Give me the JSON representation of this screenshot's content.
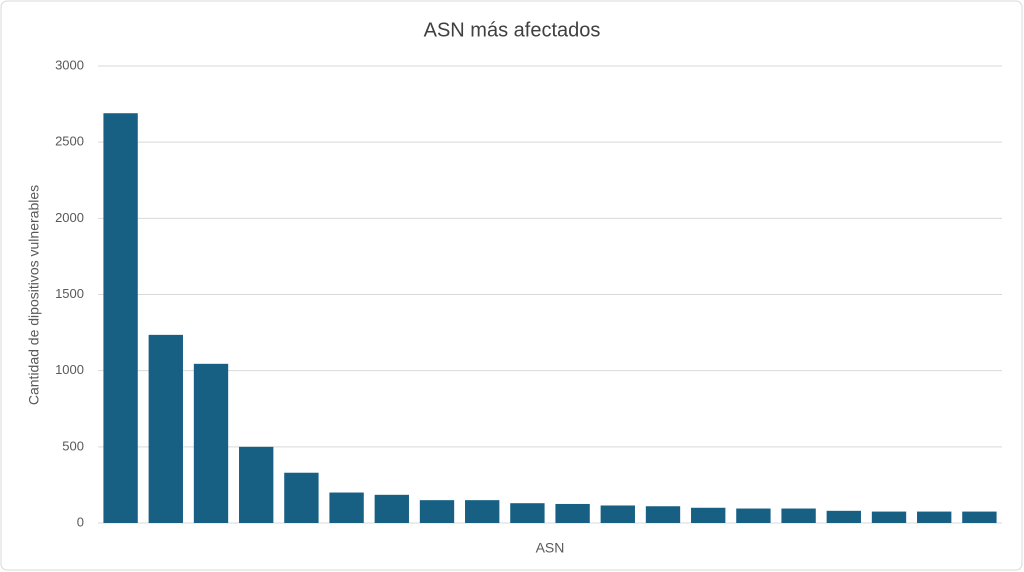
{
  "chart_data": {
    "type": "bar",
    "title": "ASN más afectados",
    "x_label": "ASN",
    "y_label": "Cantidad de dipositivos vulnerables",
    "categories": [
      null,
      null,
      null,
      null,
      null,
      null,
      null,
      null,
      null,
      null,
      null,
      null,
      null,
      null,
      null,
      null,
      null,
      null,
      null,
      null
    ],
    "values": [
      2690,
      1235,
      1045,
      500,
      330,
      200,
      185,
      150,
      150,
      130,
      125,
      115,
      110,
      100,
      95,
      95,
      80,
      75,
      75,
      75
    ],
    "color": "#176083",
    "ylim": [
      0,
      3000
    ],
    "yticks": [
      0,
      500,
      1000,
      1500,
      2000,
      2500,
      3000
    ],
    "grid": true
  }
}
